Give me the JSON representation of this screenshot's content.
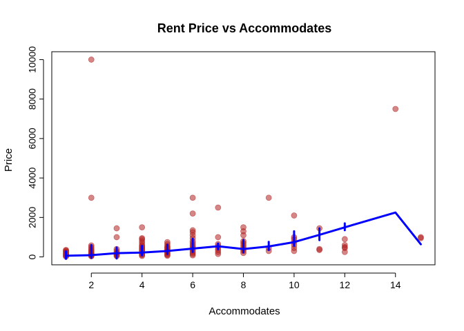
{
  "chart_data": {
    "type": "scatter",
    "title": "Rent Price vs Accommodates",
    "xlabel": "Accommodates",
    "ylabel": "Price",
    "xlim": [
      0.44,
      15.56
    ],
    "ylim": [
      -400,
      10400
    ],
    "xticks": [
      2,
      4,
      6,
      8,
      10,
      12,
      14
    ],
    "yticks": [
      0,
      2000,
      4000,
      6000,
      8000,
      10000
    ],
    "grid": false,
    "legend": "none",
    "colors": {
      "points": "#b22222",
      "line": "#0000ff"
    },
    "series": [
      {
        "type": "scatter",
        "points": [
          [
            1,
            20
          ],
          [
            1,
            50
          ],
          [
            1,
            80
          ],
          [
            1,
            110
          ],
          [
            1,
            140
          ],
          [
            1,
            170
          ],
          [
            1,
            200
          ],
          [
            1,
            240
          ],
          [
            1,
            280
          ],
          [
            1,
            320
          ],
          [
            1,
            350
          ],
          [
            2,
            30
          ],
          [
            2,
            60
          ],
          [
            2,
            90
          ],
          [
            2,
            120
          ],
          [
            2,
            160
          ],
          [
            2,
            200
          ],
          [
            2,
            250
          ],
          [
            2,
            300
          ],
          [
            2,
            350
          ],
          [
            2,
            420
          ],
          [
            2,
            500
          ],
          [
            2,
            580
          ],
          [
            2,
            3000
          ],
          [
            2,
            10000
          ],
          [
            3,
            40
          ],
          [
            3,
            80
          ],
          [
            3,
            120
          ],
          [
            3,
            160
          ],
          [
            3,
            220
          ],
          [
            3,
            300
          ],
          [
            3,
            400
          ],
          [
            3,
            1000
          ],
          [
            3,
            1450
          ],
          [
            4,
            50
          ],
          [
            4,
            100
          ],
          [
            4,
            150
          ],
          [
            4,
            200
          ],
          [
            4,
            250
          ],
          [
            4,
            300
          ],
          [
            4,
            350
          ],
          [
            4,
            400
          ],
          [
            4,
            450
          ],
          [
            4,
            500
          ],
          [
            4,
            550
          ],
          [
            4,
            600
          ],
          [
            4,
            700
          ],
          [
            4,
            800
          ],
          [
            4,
            900
          ],
          [
            4,
            950
          ],
          [
            4,
            1500
          ],
          [
            5,
            60
          ],
          [
            5,
            100
          ],
          [
            5,
            150
          ],
          [
            5,
            200
          ],
          [
            5,
            250
          ],
          [
            5,
            300
          ],
          [
            5,
            350
          ],
          [
            5,
            400
          ],
          [
            5,
            450
          ],
          [
            5,
            500
          ],
          [
            5,
            550
          ],
          [
            5,
            650
          ],
          [
            5,
            750
          ],
          [
            6,
            80
          ],
          [
            6,
            150
          ],
          [
            6,
            220
          ],
          [
            6,
            300
          ],
          [
            6,
            380
          ],
          [
            6,
            450
          ],
          [
            6,
            520
          ],
          [
            6,
            600
          ],
          [
            6,
            700
          ],
          [
            6,
            800
          ],
          [
            6,
            950
          ],
          [
            6,
            1100
          ],
          [
            6,
            1250
          ],
          [
            6,
            1350
          ],
          [
            6,
            2200
          ],
          [
            6,
            3000
          ],
          [
            7,
            150
          ],
          [
            7,
            250
          ],
          [
            7,
            350
          ],
          [
            7,
            450
          ],
          [
            7,
            550
          ],
          [
            7,
            650
          ],
          [
            7,
            1000
          ],
          [
            7,
            2500
          ],
          [
            8,
            200
          ],
          [
            8,
            300
          ],
          [
            8,
            400
          ],
          [
            8,
            500
          ],
          [
            8,
            600
          ],
          [
            8,
            700
          ],
          [
            8,
            800
          ],
          [
            8,
            1100
          ],
          [
            8,
            1300
          ],
          [
            8,
            1500
          ],
          [
            9,
            300
          ],
          [
            9,
            450
          ],
          [
            9,
            3000
          ],
          [
            10,
            300
          ],
          [
            10,
            450
          ],
          [
            10,
            600
          ],
          [
            10,
            750
          ],
          [
            10,
            900
          ],
          [
            10,
            1000
          ],
          [
            10,
            2100
          ],
          [
            11,
            350
          ],
          [
            11,
            400
          ],
          [
            11,
            1450
          ],
          [
            12,
            250
          ],
          [
            12,
            450
          ],
          [
            12,
            500
          ],
          [
            12,
            600
          ],
          [
            12,
            900
          ],
          [
            14,
            7500
          ],
          [
            15,
            950
          ],
          [
            15,
            1000
          ]
        ]
      },
      {
        "type": "line",
        "points": [
          [
            1,
            60
          ],
          [
            2,
            90
          ],
          [
            3,
            190
          ],
          [
            4,
            220
          ],
          [
            5,
            300
          ],
          [
            6,
            420
          ],
          [
            7,
            540
          ],
          [
            8,
            400
          ],
          [
            9,
            530
          ],
          [
            10,
            750
          ],
          [
            11,
            1120
          ],
          [
            12,
            1500
          ],
          [
            14,
            2250
          ],
          [
            15,
            640
          ]
        ]
      }
    ],
    "line_vertical_segments": [
      {
        "x": 1,
        "from": -100,
        "to": 280
      },
      {
        "x": 2,
        "from": -50,
        "to": 600
      },
      {
        "x": 3,
        "from": -80,
        "to": 480
      },
      {
        "x": 4,
        "from": 80,
        "to": 560
      },
      {
        "x": 5,
        "from": 150,
        "to": 620
      },
      {
        "x": 6,
        "from": 250,
        "to": 920
      },
      {
        "x": 7,
        "from": 380,
        "to": 680
      },
      {
        "x": 8,
        "from": 230,
        "to": 860
      },
      {
        "x": 9,
        "from": 350,
        "to": 760
      },
      {
        "x": 10,
        "from": 560,
        "to": 1300
      },
      {
        "x": 11,
        "from": 850,
        "to": 1450
      },
      {
        "x": 12,
        "from": 1350,
        "to": 1700
      }
    ]
  }
}
